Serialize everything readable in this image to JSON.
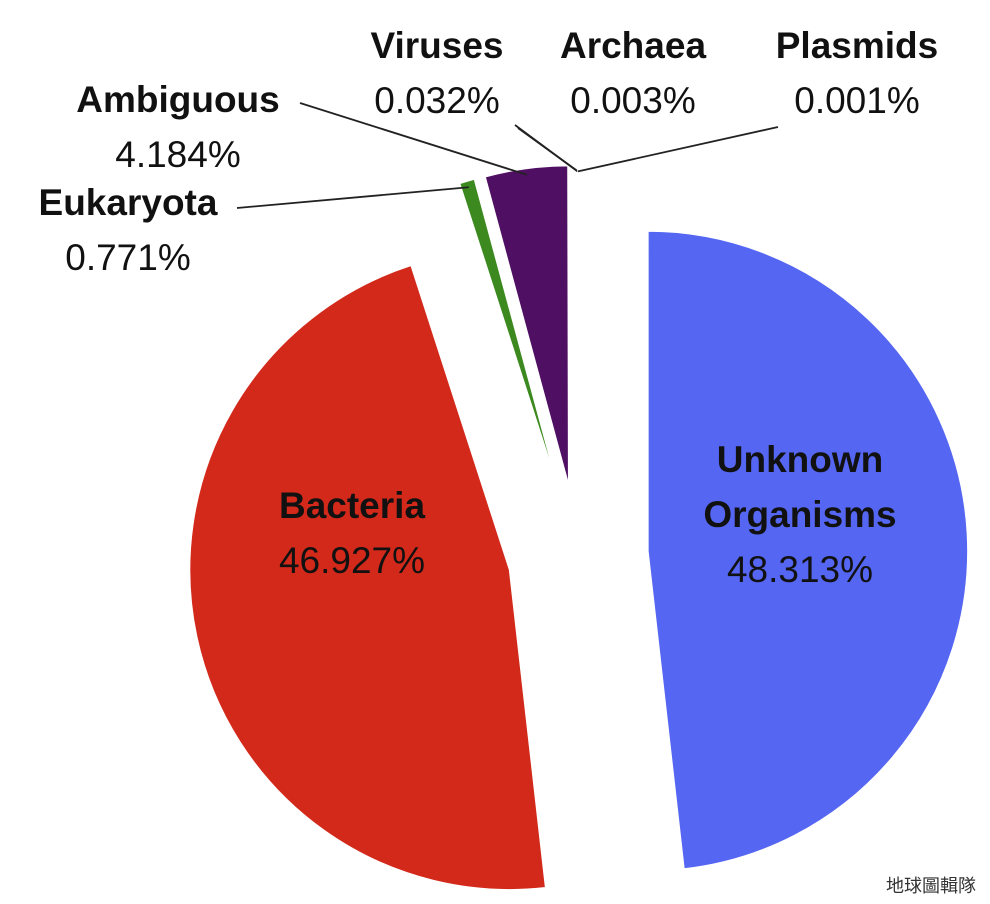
{
  "chart_data": {
    "type": "pie",
    "categories": [
      "Unknown Organisms",
      "Bacteria",
      "Eukaryota",
      "Ambiguous",
      "Viruses",
      "Archaea",
      "Plasmids"
    ],
    "values": [
      48.313,
      46.927,
      0.771,
      4.184,
      0.032,
      0.003,
      0.001
    ],
    "value_labels": [
      "48.313%",
      "46.927%",
      "0.771%",
      "4.184%",
      "0.032%",
      "0.003%",
      "0.001%"
    ],
    "colors": [
      "#5566f2",
      "#d2291b",
      "#3c8a1f",
      "#4f0f62",
      "#7c5aa6",
      "#c9d6ea",
      "#a9c6e6"
    ]
  },
  "watermark": "地球圖輯隊"
}
